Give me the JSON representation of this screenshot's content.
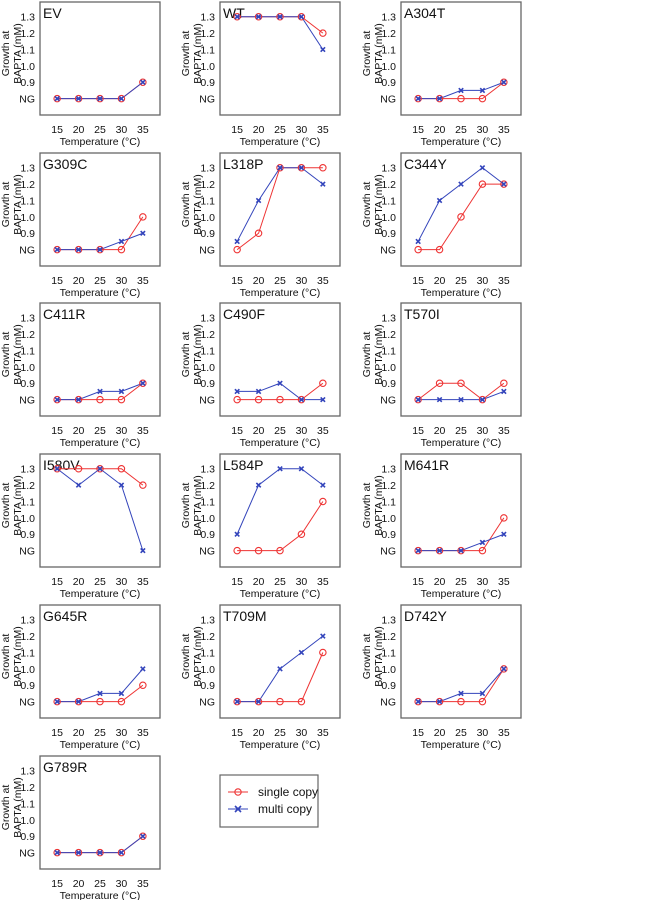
{
  "chart_data": {
    "type": "line",
    "layout": "small-multiples 3 columns",
    "x": [
      15,
      20,
      25,
      30,
      35
    ],
    "xlabel": "Temperature (°C)",
    "ylabel_line1": "Growth at",
    "ylabel_line2": "BAPTA (mM)",
    "ylim": [
      0.7,
      1.39
    ],
    "xlim": [
      11,
      39
    ],
    "y_ticks": [
      {
        "value": 0.8,
        "label": "NG"
      },
      {
        "value": 0.9,
        "label": "0.9"
      },
      {
        "value": 1.0,
        "label": "1.0"
      },
      {
        "value": 1.1,
        "label": "1.1"
      },
      {
        "value": 1.2,
        "label": "1.2"
      },
      {
        "value": 1.3,
        "label": "1.3"
      }
    ],
    "x_tick_labels": [
      "15",
      "20",
      "25",
      "30",
      "35"
    ],
    "note": "NG (no growth) plotted at 0.8",
    "legend": {
      "placement": "bottom-center",
      "entries": [
        {
          "name": "single copy",
          "color": "#ee3333",
          "marker": "circle"
        },
        {
          "name": "multi copy",
          "color": "#3344bb",
          "marker": "x"
        }
      ]
    },
    "panels": [
      {
        "title": "EV",
        "single": [
          0.8,
          0.8,
          0.8,
          0.8,
          0.9
        ],
        "multi": [
          0.8,
          0.8,
          0.8,
          0.8,
          0.9
        ]
      },
      {
        "title": "WT",
        "single": [
          1.3,
          1.3,
          1.3,
          1.3,
          1.2
        ],
        "multi": [
          1.3,
          1.3,
          1.3,
          1.3,
          1.1
        ]
      },
      {
        "title": "A304T",
        "single": [
          0.8,
          0.8,
          0.8,
          0.8,
          0.9
        ],
        "multi": [
          0.8,
          0.8,
          0.85,
          0.85,
          0.9
        ]
      },
      {
        "title": "G309C",
        "single": [
          0.8,
          0.8,
          0.8,
          0.8,
          1.0
        ],
        "multi": [
          0.8,
          0.8,
          0.8,
          0.85,
          0.9
        ]
      },
      {
        "title": "L318P",
        "single": [
          0.8,
          0.9,
          1.3,
          1.3,
          1.3
        ],
        "multi": [
          0.85,
          1.1,
          1.3,
          1.3,
          1.2
        ]
      },
      {
        "title": "C344Y",
        "single": [
          0.8,
          0.8,
          1.0,
          1.2,
          1.2
        ],
        "multi": [
          0.85,
          1.1,
          1.2,
          1.3,
          1.2
        ]
      },
      {
        "title": "C411R",
        "single": [
          0.8,
          0.8,
          0.8,
          0.8,
          0.9
        ],
        "multi": [
          0.8,
          0.8,
          0.85,
          0.85,
          0.9
        ]
      },
      {
        "title": "C490F",
        "single": [
          0.8,
          0.8,
          0.8,
          0.8,
          0.9
        ],
        "multi": [
          0.85,
          0.85,
          0.9,
          0.8,
          0.8
        ]
      },
      {
        "title": "T570I",
        "single": [
          0.8,
          0.9,
          0.9,
          0.8,
          0.9
        ],
        "multi": [
          0.8,
          0.8,
          0.8,
          0.8,
          0.85
        ]
      },
      {
        "title": "I580V",
        "single": [
          1.3,
          1.3,
          1.3,
          1.3,
          1.2
        ],
        "multi": [
          1.3,
          1.2,
          1.3,
          1.2,
          0.8
        ]
      },
      {
        "title": "L584P",
        "single": [
          0.8,
          0.8,
          0.8,
          0.9,
          1.1
        ],
        "multi": [
          0.9,
          1.2,
          1.3,
          1.3,
          1.2
        ]
      },
      {
        "title": "M641R",
        "single": [
          0.8,
          0.8,
          0.8,
          0.8,
          1.0
        ],
        "multi": [
          0.8,
          0.8,
          0.8,
          0.85,
          0.9
        ]
      },
      {
        "title": "G645R",
        "single": [
          0.8,
          0.8,
          0.8,
          0.8,
          0.9
        ],
        "multi": [
          0.8,
          0.8,
          0.85,
          0.85,
          1.0
        ]
      },
      {
        "title": "T709M",
        "single": [
          0.8,
          0.8,
          0.8,
          0.8,
          1.1
        ],
        "multi": [
          0.8,
          0.8,
          1.0,
          1.1,
          1.2
        ]
      },
      {
        "title": "D742Y",
        "single": [
          0.8,
          0.8,
          0.8,
          0.8,
          1.0
        ],
        "multi": [
          0.8,
          0.8,
          0.85,
          0.85,
          1.0
        ]
      },
      {
        "title": "G789R",
        "single": [
          0.8,
          0.8,
          0.8,
          0.8,
          0.9
        ],
        "multi": [
          0.8,
          0.8,
          0.8,
          0.8,
          0.9
        ]
      }
    ]
  }
}
